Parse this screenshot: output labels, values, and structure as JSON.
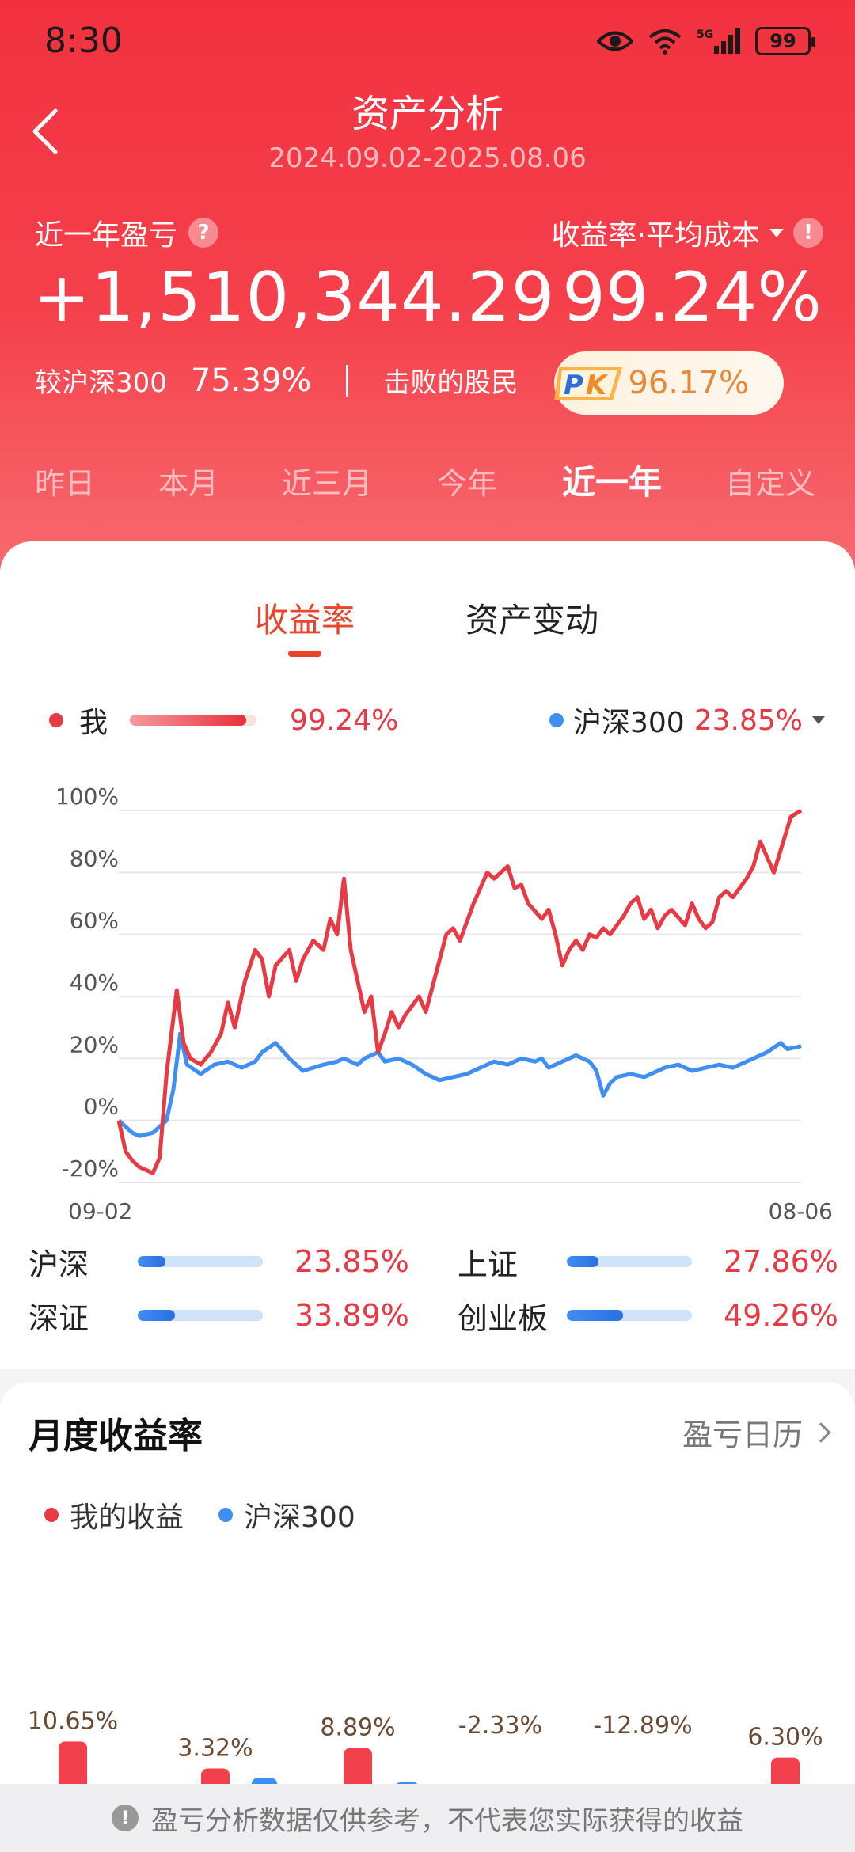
{
  "status_bar": {
    "time": "8:30",
    "battery": "99",
    "network": "5G"
  },
  "header": {
    "title": "资产分析",
    "date_range": "2024.09.02-2025.08.06"
  },
  "summary": {
    "pl_label": "近一年盈亏",
    "help_mark": "?",
    "pl_value": "+1,510,344.29",
    "rate_label": "收益率·平均成本",
    "warn_mark": "!",
    "rate_value": "99.24%",
    "vs_index_label": "较沪深300",
    "vs_index_value": "75.39%",
    "beat_label": "击败的股民",
    "beat_value": "96.17%",
    "pk_text": "PK"
  },
  "period_tabs": [
    {
      "label": "昨日",
      "active": false
    },
    {
      "label": "本月",
      "active": false
    },
    {
      "label": "近三月",
      "active": false
    },
    {
      "label": "今年",
      "active": false
    },
    {
      "label": "近一年",
      "active": true
    },
    {
      "label": "自定义",
      "active": false
    }
  ],
  "chart_tabs": [
    {
      "label": "收益率",
      "active": true
    },
    {
      "label": "资产变动",
      "active": false
    }
  ],
  "legend": {
    "me_label": "我",
    "me_value": "99.24%",
    "index_label": "沪深300",
    "index_value": "23.85%"
  },
  "colors": {
    "accent_red": "#e83a45",
    "series_blue": "#3f8ef3",
    "header_red": "#f2313f"
  },
  "chart_data": {
    "type": "line",
    "x_start": "09-02",
    "x_end": "08-06",
    "y_ticks": [
      "100%",
      "80%",
      "60%",
      "40%",
      "20%",
      "0%",
      "-20%"
    ],
    "ylim": [
      -20,
      100
    ],
    "grid": true,
    "series": [
      {
        "name": "我",
        "color": "#e83a45",
        "values": [
          0,
          -10,
          -13,
          -15,
          -16,
          -17,
          -12,
          15,
          42,
          25,
          20,
          18,
          22,
          28,
          38,
          30,
          45,
          55,
          52,
          40,
          50,
          55,
          45,
          52,
          58,
          55,
          65,
          60,
          78,
          55,
          45,
          35,
          40,
          22,
          28,
          35,
          30,
          34,
          40,
          35,
          60,
          62,
          58,
          70,
          80,
          78,
          82,
          75,
          76,
          70,
          65,
          68,
          60,
          50,
          55,
          58,
          55,
          60,
          59,
          62,
          60,
          66,
          70,
          72,
          65,
          68,
          62,
          66,
          68,
          63,
          70,
          65,
          62,
          64,
          72,
          74,
          72,
          78,
          82,
          90,
          85,
          80,
          98,
          100
        ],
        "x_frac": [
          0,
          0.01,
          0.02,
          0.03,
          0.04,
          0.05,
          0.06,
          0.07,
          0.085,
          0.095,
          0.105,
          0.12,
          0.135,
          0.15,
          0.16,
          0.17,
          0.185,
          0.2,
          0.21,
          0.22,
          0.23,
          0.25,
          0.26,
          0.27,
          0.285,
          0.3,
          0.31,
          0.32,
          0.33,
          0.34,
          0.35,
          0.36,
          0.37,
          0.38,
          0.39,
          0.4,
          0.41,
          0.42,
          0.44,
          0.45,
          0.48,
          0.49,
          0.5,
          0.52,
          0.54,
          0.55,
          0.57,
          0.58,
          0.59,
          0.6,
          0.62,
          0.63,
          0.64,
          0.65,
          0.66,
          0.67,
          0.68,
          0.69,
          0.7,
          0.71,
          0.72,
          0.74,
          0.75,
          0.76,
          0.77,
          0.78,
          0.79,
          0.8,
          0.81,
          0.83,
          0.84,
          0.85,
          0.86,
          0.87,
          0.88,
          0.89,
          0.9,
          0.92,
          0.93,
          0.94,
          0.95,
          0.96,
          0.985,
          1.0
        ]
      },
      {
        "name": "沪深300",
        "color": "#3f8ef3",
        "values": [
          0,
          -2,
          -4,
          -5,
          -4,
          -2,
          0,
          10,
          28,
          18,
          15,
          18,
          19,
          17,
          19,
          22,
          25,
          20,
          18,
          16,
          18,
          19,
          20,
          18,
          20,
          22,
          19,
          20,
          18,
          15,
          13,
          14,
          15,
          17,
          19,
          18,
          20,
          19,
          20,
          17,
          18,
          19,
          20,
          21,
          19,
          16,
          8,
          12,
          14,
          15,
          14,
          16,
          17,
          18,
          16,
          17,
          18,
          17,
          19,
          20,
          21,
          22,
          25,
          23,
          24
        ],
        "x_frac": [
          0,
          0.01,
          0.02,
          0.03,
          0.05,
          0.06,
          0.07,
          0.08,
          0.09,
          0.1,
          0.12,
          0.14,
          0.16,
          0.18,
          0.2,
          0.21,
          0.23,
          0.25,
          0.26,
          0.27,
          0.3,
          0.32,
          0.33,
          0.35,
          0.36,
          0.38,
          0.39,
          0.41,
          0.43,
          0.45,
          0.47,
          0.49,
          0.51,
          0.53,
          0.55,
          0.57,
          0.59,
          0.61,
          0.62,
          0.63,
          0.64,
          0.65,
          0.66,
          0.67,
          0.69,
          0.7,
          0.71,
          0.72,
          0.73,
          0.75,
          0.77,
          0.79,
          0.8,
          0.82,
          0.84,
          0.86,
          0.88,
          0.9,
          0.92,
          0.93,
          0.94,
          0.95,
          0.97,
          0.98,
          1.0
        ]
      }
    ]
  },
  "index_compare": [
    {
      "name": "沪深",
      "value": "23.85%",
      "fill": 0.22
    },
    {
      "name": "上证",
      "value": "27.86%",
      "fill": 0.25
    },
    {
      "name": "深证",
      "value": "33.89%",
      "fill": 0.3
    },
    {
      "name": "创业板",
      "value": "49.26%",
      "fill": 0.45
    }
  ],
  "monthly": {
    "title": "月度收益率",
    "calendar_link": "盈亏日历",
    "legend_me": "我的收益",
    "legend_index": "沪深300",
    "chart_data": {
      "type": "bar",
      "series": [
        {
          "name": "我的收益",
          "values": [
            10.65,
            3.32,
            8.89,
            -2.33,
            -12.89,
            6.3
          ]
        }
      ],
      "labels": [
        "10.65%",
        "3.32%",
        "8.89%",
        "-2.33%",
        "-12.89%",
        "6.30%"
      ]
    }
  },
  "footer": {
    "notice": "盈亏分析数据仅供参考，不代表您实际获得的收益",
    "info_mark": "!"
  }
}
